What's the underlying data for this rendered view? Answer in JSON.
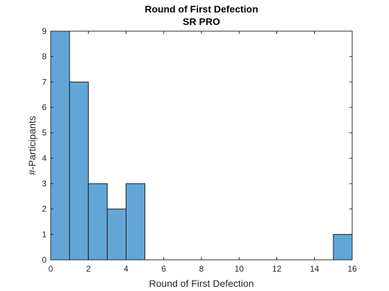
{
  "chart_data": {
    "type": "bar",
    "title": "Round of First Defection",
    "subtitle": "SR PRO",
    "xlabel": "Round of First Defection",
    "ylabel": "#-Participants",
    "xlim": [
      0,
      16
    ],
    "ylim": [
      0,
      9
    ],
    "xticks": [
      0,
      2,
      4,
      6,
      8,
      10,
      12,
      14,
      16
    ],
    "yticks": [
      0,
      1,
      2,
      3,
      4,
      5,
      6,
      7,
      8,
      9
    ],
    "bin_edges": [
      0,
      1,
      2,
      3,
      4,
      5,
      6,
      7,
      8,
      9,
      10,
      11,
      12,
      13,
      14,
      15,
      16
    ],
    "values": [
      9,
      7,
      3,
      2,
      3,
      0,
      0,
      0,
      0,
      0,
      0,
      0,
      0,
      0,
      0,
      1
    ],
    "bar_color": "#62A6D8",
    "edge_color": "#1a1a1a",
    "grid": false
  }
}
